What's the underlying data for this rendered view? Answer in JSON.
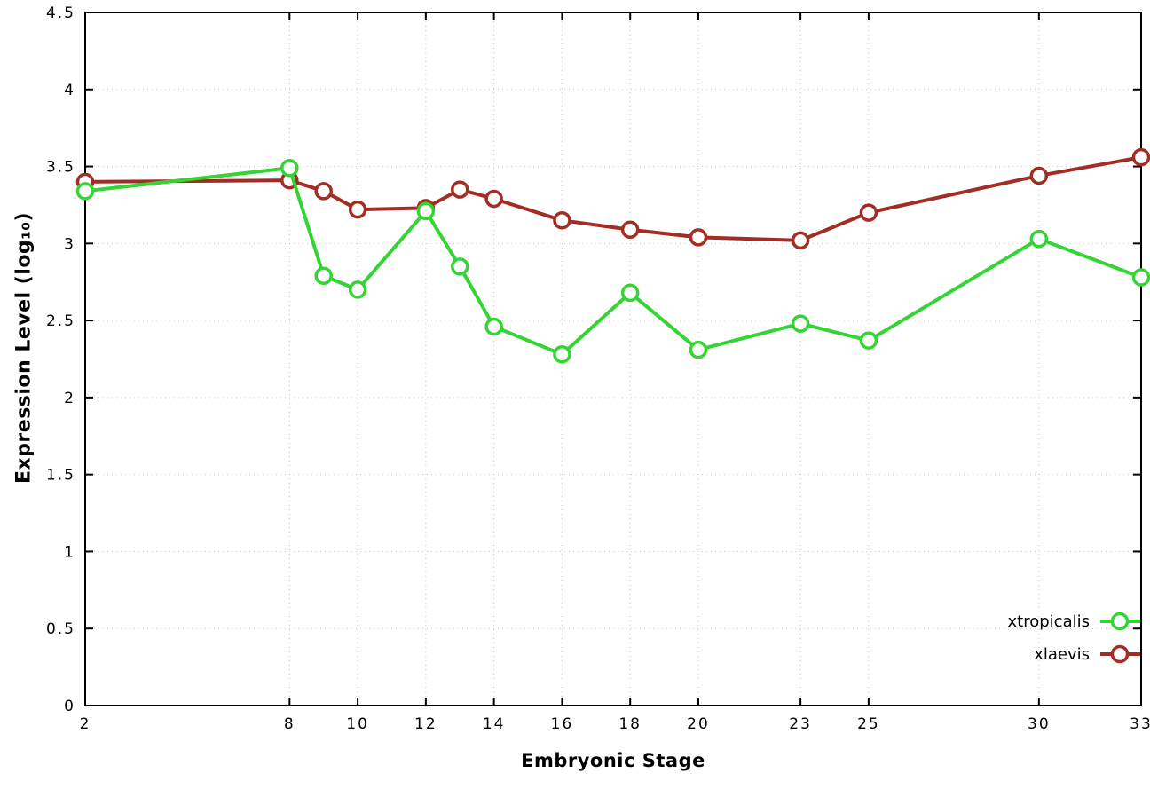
{
  "chart_data": {
    "type": "line",
    "title": "",
    "xlabel": "Embryonic Stage",
    "ylabel": "Expression Level (log₁₀)",
    "x": [
      2,
      8,
      9,
      10,
      12,
      13,
      14,
      16,
      18,
      20,
      23,
      25,
      30,
      33
    ],
    "xlim": [
      2,
      33
    ],
    "ylim": [
      0,
      4.5
    ],
    "xticks": [
      2,
      8,
      10,
      12,
      14,
      16,
      18,
      20,
      23,
      25,
      30,
      33
    ],
    "yticks": [
      0,
      0.5,
      1,
      1.5,
      2,
      2.5,
      3,
      3.5,
      4,
      4.5
    ],
    "grid": true,
    "legend_position": "inside-bottom-right",
    "series": [
      {
        "name": "xtropicalis",
        "color": "#35d435",
        "values": [
          3.34,
          3.49,
          2.79,
          2.7,
          3.21,
          2.85,
          2.46,
          2.28,
          2.68,
          2.31,
          2.48,
          2.37,
          3.03,
          2.78
        ]
      },
      {
        "name": "xlaevis",
        "color": "#a12d24",
        "values": [
          3.4,
          3.41,
          3.34,
          3.22,
          3.23,
          3.35,
          3.29,
          3.15,
          3.09,
          3.04,
          3.02,
          3.2,
          3.44,
          3.56
        ]
      }
    ]
  }
}
